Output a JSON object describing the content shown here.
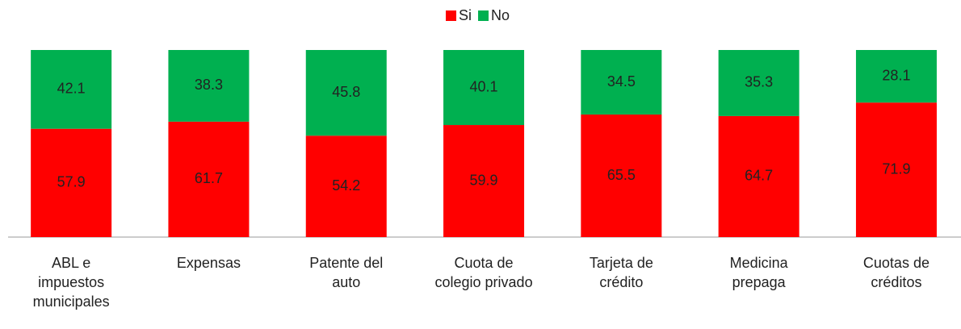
{
  "chart_data": {
    "type": "stacked_bar",
    "categories": [
      "ABL e\nimpuestos\nmunicipales",
      "Expensas",
      "Patente del\nauto",
      "Cuota de\ncolegio privado",
      "Tarjeta de\ncrédito",
      "Medicina\nprepaga",
      "Cuotas de\ncréditos"
    ],
    "series": [
      {
        "name": "Si",
        "color": "#ff0000",
        "values": [
          57.9,
          61.7,
          54.2,
          59.9,
          65.5,
          64.7,
          71.9
        ]
      },
      {
        "name": "No",
        "color": "#00b050",
        "values": [
          42.1,
          38.3,
          45.8,
          40.1,
          34.5,
          35.3,
          28.1
        ]
      }
    ],
    "legend": "top"
  }
}
